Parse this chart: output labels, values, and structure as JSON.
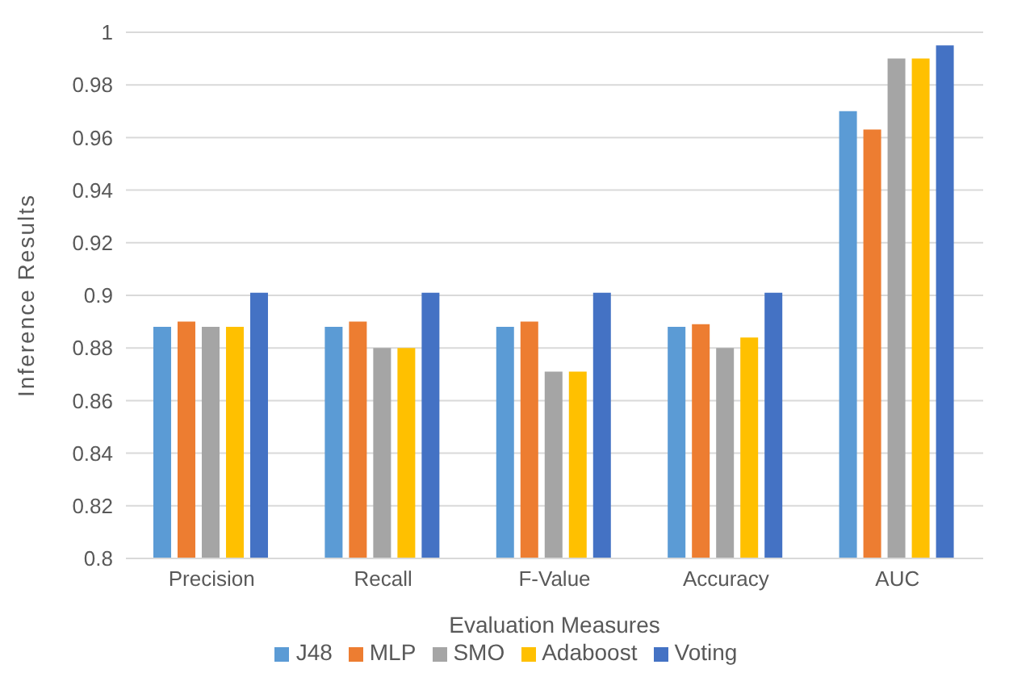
{
  "chart_data": {
    "type": "bar",
    "xlabel": "Evaluation Measures",
    "ylabel": "Inference Results",
    "categories": [
      "Precision",
      "Recall",
      "F-Value",
      "Accuracy",
      "AUC"
    ],
    "series": [
      {
        "name": "J48",
        "color": "#5b9bd5",
        "values": [
          0.888,
          0.888,
          0.888,
          0.888,
          0.97
        ]
      },
      {
        "name": "MLP",
        "color": "#ed7d31",
        "values": [
          0.89,
          0.89,
          0.89,
          0.889,
          0.963
        ]
      },
      {
        "name": "SMO",
        "color": "#a5a5a5",
        "values": [
          0.888,
          0.88,
          0.871,
          0.88,
          0.99
        ]
      },
      {
        "name": "Adaboost",
        "color": "#ffc000",
        "values": [
          0.888,
          0.88,
          0.871,
          0.884,
          0.99
        ]
      },
      {
        "name": "Voting",
        "color": "#4472c4",
        "values": [
          0.901,
          0.901,
          0.901,
          0.901,
          0.995
        ]
      }
    ],
    "ylim": [
      0.8,
      1
    ],
    "yticks": [
      0.8,
      0.82,
      0.84,
      0.86,
      0.88,
      0.9,
      0.92,
      0.94,
      0.96,
      0.98,
      1
    ],
    "grid": "y",
    "legend": "bottom"
  }
}
